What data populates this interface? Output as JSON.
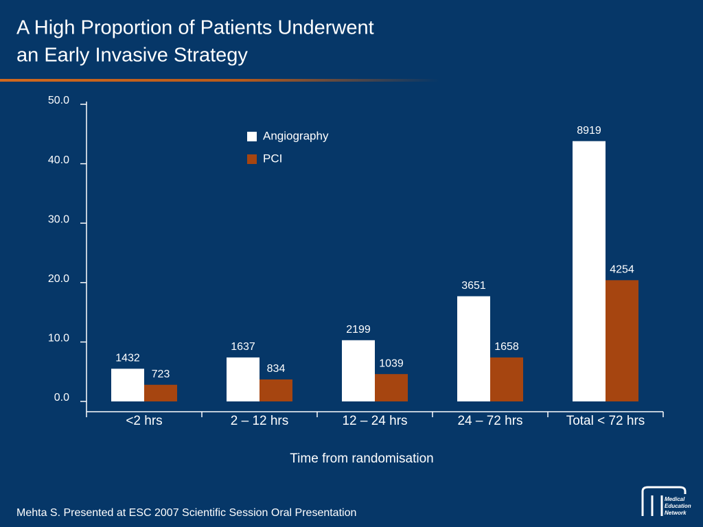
{
  "title_lines": [
    "A High Proportion of Patients Underwent",
    "an Early Invasive Strategy"
  ],
  "footer": "Mehta S. Presented at ESC 2007 Scientific Session Oral Presentation",
  "logo": [
    "Medical",
    "Education",
    "Network"
  ],
  "chart_data": {
    "type": "bar",
    "categories": [
      "<2 hrs",
      "2 – 12 hrs",
      "12 – 24 hrs",
      "24 – 72 hrs",
      "Total < 72 hrs"
    ],
    "x_label": "Time from randomisation",
    "series": [
      {
        "name": "Angiography",
        "color": "#ffffff",
        "values": [
          5.5,
          7.4,
          10.3,
          17.7,
          43.8
        ],
        "counts": [
          1432,
          1637,
          2199,
          3651,
          8919
        ]
      },
      {
        "name": "PCI",
        "color": "#a64510",
        "values": [
          2.8,
          3.7,
          4.6,
          7.4,
          20.4
        ],
        "counts": [
          723,
          834,
          1039,
          1658,
          4254
        ]
      }
    ],
    "ylim": [
      0,
      50
    ],
    "yticks": [
      {
        "value": 0,
        "label": "0.0"
      },
      {
        "value": 10,
        "label": "10.0"
      },
      {
        "value": 20,
        "label": "20.0"
      },
      {
        "value": 30,
        "label": "30.0"
      },
      {
        "value": 40,
        "label": "40.0"
      },
      {
        "value": 50,
        "label": "50.0"
      }
    ],
    "legend": "top"
  }
}
